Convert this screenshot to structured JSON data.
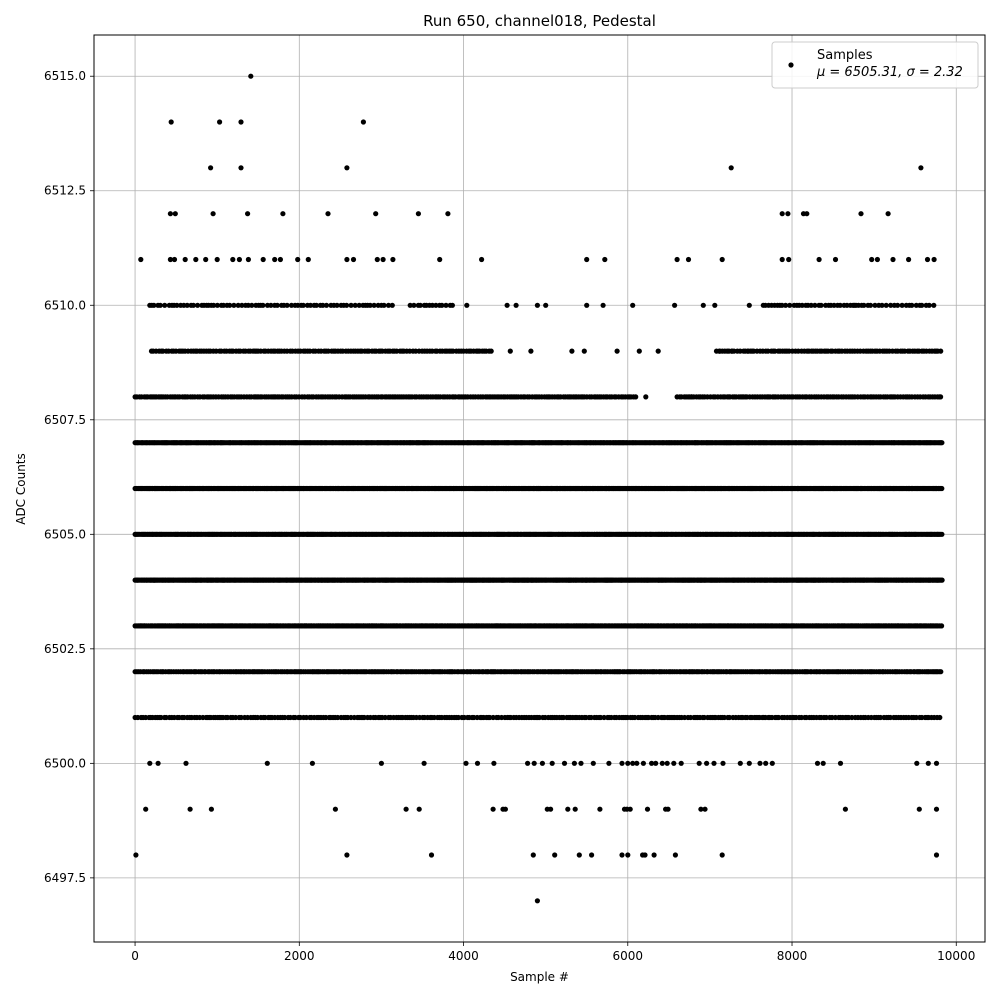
{
  "chart_data": {
    "type": "scatter",
    "title": "Run 650, channel018, Pedestal",
    "xlabel": "Sample #",
    "ylabel": "ADC Counts",
    "xlim": [
      -500,
      10350
    ],
    "ylim": [
      6496.1,
      6515.9
    ],
    "xticks": [
      0,
      2000,
      4000,
      6000,
      8000,
      10000
    ],
    "xtick_labels": [
      "0",
      "2000",
      "4000",
      "6000",
      "8000",
      "10000"
    ],
    "yticks": [
      6497.5,
      6500.0,
      6502.5,
      6505.0,
      6507.5,
      6510.0,
      6512.5,
      6515.0
    ],
    "ytick_labels": [
      "6497.5",
      "6500.0",
      "6502.5",
      "6505.0",
      "6507.5",
      "6510.0",
      "6512.5",
      "6515.0"
    ],
    "grid": true,
    "legend_position": "top-right",
    "legend": {
      "label": "Samples",
      "stats_text": "μ = 6505.31, σ = 2.32"
    },
    "marker_color": "#000000",
    "series": [
      {
        "name": "Samples",
        "points": [
          [
            1410,
            6515
          ],
          [
            440,
            6514
          ],
          [
            1030,
            6514
          ],
          [
            1290,
            6514
          ],
          [
            2780,
            6514
          ],
          [
            920,
            6513
          ],
          [
            1290,
            6513
          ],
          [
            2580,
            6513
          ],
          [
            7260,
            6513
          ],
          [
            9570,
            6513
          ],
          [
            430,
            6512
          ],
          [
            490,
            6512
          ],
          [
            950,
            6512
          ],
          [
            1370,
            6512
          ],
          [
            1800,
            6512
          ],
          [
            2350,
            6512
          ],
          [
            2930,
            6512
          ],
          [
            3450,
            6512
          ],
          [
            3810,
            6512
          ],
          [
            7880,
            6512
          ],
          [
            7950,
            6512
          ],
          [
            8140,
            6512
          ],
          [
            8180,
            6512
          ],
          [
            8840,
            6512
          ],
          [
            9170,
            6512
          ],
          [
            70,
            6511
          ],
          [
            430,
            6511
          ],
          [
            480,
            6511
          ],
          [
            610,
            6511
          ],
          [
            740,
            6511
          ],
          [
            860,
            6511
          ],
          [
            1000,
            6511
          ],
          [
            1190,
            6511
          ],
          [
            1270,
            6511
          ],
          [
            1380,
            6511
          ],
          [
            1560,
            6511
          ],
          [
            1700,
            6511
          ],
          [
            1770,
            6511
          ],
          [
            1980,
            6511
          ],
          [
            2110,
            6511
          ],
          [
            2580,
            6511
          ],
          [
            2660,
            6511
          ],
          [
            2950,
            6511
          ],
          [
            3020,
            6511
          ],
          [
            3140,
            6511
          ],
          [
            3710,
            6511
          ],
          [
            4220,
            6511
          ],
          [
            5500,
            6511
          ],
          [
            5720,
            6511
          ],
          [
            6600,
            6511
          ],
          [
            6740,
            6511
          ],
          [
            7150,
            6511
          ],
          [
            7880,
            6511
          ],
          [
            7960,
            6511
          ],
          [
            8330,
            6511
          ],
          [
            8530,
            6511
          ],
          [
            8970,
            6511
          ],
          [
            9040,
            6511
          ],
          [
            9230,
            6511
          ],
          [
            9420,
            6511
          ],
          [
            9650,
            6511
          ],
          [
            9730,
            6511
          ],
          [
            4040,
            6510
          ],
          [
            4530,
            6510
          ],
          [
            4640,
            6510
          ],
          [
            4900,
            6510
          ],
          [
            5000,
            6510
          ],
          [
            5500,
            6510
          ],
          [
            5700,
            6510
          ],
          [
            6060,
            6510
          ],
          [
            6570,
            6510
          ],
          [
            6920,
            6510
          ],
          [
            7060,
            6510
          ],
          [
            7480,
            6510
          ],
          [
            8760,
            6510
          ],
          [
            4570,
            6509
          ],
          [
            4820,
            6509
          ],
          [
            5320,
            6509
          ],
          [
            5470,
            6509
          ],
          [
            5870,
            6509
          ],
          [
            6140,
            6509
          ],
          [
            6370,
            6509
          ],
          [
            7120,
            6509
          ],
          [
            7270,
            6509
          ],
          [
            7460,
            6509
          ],
          [
            6220,
            6508
          ],
          [
            6780,
            6508
          ],
          [
            7230,
            6508
          ],
          [
            180,
            6500
          ],
          [
            280,
            6500
          ],
          [
            620,
            6500
          ],
          [
            1610,
            6500
          ],
          [
            2160,
            6500
          ],
          [
            3000,
            6500
          ],
          [
            3520,
            6500
          ],
          [
            4030,
            6500
          ],
          [
            4170,
            6500
          ],
          [
            4370,
            6500
          ],
          [
            4780,
            6500
          ],
          [
            4860,
            6500
          ],
          [
            4960,
            6500
          ],
          [
            5080,
            6500
          ],
          [
            5230,
            6500
          ],
          [
            5350,
            6500
          ],
          [
            5430,
            6500
          ],
          [
            5580,
            6500
          ],
          [
            5770,
            6500
          ],
          [
            5930,
            6500
          ],
          [
            6000,
            6500
          ],
          [
            6060,
            6500
          ],
          [
            6110,
            6500
          ],
          [
            6190,
            6500
          ],
          [
            6290,
            6500
          ],
          [
            6340,
            6500
          ],
          [
            6420,
            6500
          ],
          [
            6480,
            6500
          ],
          [
            6560,
            6500
          ],
          [
            6650,
            6500
          ],
          [
            6870,
            6500
          ],
          [
            6960,
            6500
          ],
          [
            7050,
            6500
          ],
          [
            7160,
            6500
          ],
          [
            7370,
            6500
          ],
          [
            7480,
            6500
          ],
          [
            7610,
            6500
          ],
          [
            7680,
            6500
          ],
          [
            7760,
            6500
          ],
          [
            8310,
            6500
          ],
          [
            8380,
            6500
          ],
          [
            8590,
            6500
          ],
          [
            9520,
            6500
          ],
          [
            9660,
            6500
          ],
          [
            9760,
            6500
          ],
          [
            130,
            6499
          ],
          [
            670,
            6499
          ],
          [
            930,
            6499
          ],
          [
            2440,
            6499
          ],
          [
            3300,
            6499
          ],
          [
            3460,
            6499
          ],
          [
            4360,
            6499
          ],
          [
            4480,
            6499
          ],
          [
            4510,
            6499
          ],
          [
            5020,
            6499
          ],
          [
            5060,
            6499
          ],
          [
            5270,
            6499
          ],
          [
            5360,
            6499
          ],
          [
            5660,
            6499
          ],
          [
            5960,
            6499
          ],
          [
            5990,
            6499
          ],
          [
            6030,
            6499
          ],
          [
            6240,
            6499
          ],
          [
            6460,
            6499
          ],
          [
            6490,
            6499
          ],
          [
            6890,
            6499
          ],
          [
            6940,
            6499
          ],
          [
            8650,
            6499
          ],
          [
            9550,
            6499
          ],
          [
            9760,
            6499
          ],
          [
            10,
            6498
          ],
          [
            2580,
            6498
          ],
          [
            3610,
            6498
          ],
          [
            4850,
            6498
          ],
          [
            5110,
            6498
          ],
          [
            5410,
            6498
          ],
          [
            5560,
            6498
          ],
          [
            5930,
            6498
          ],
          [
            6000,
            6498
          ],
          [
            6180,
            6498
          ],
          [
            6210,
            6498
          ],
          [
            6320,
            6498
          ],
          [
            6580,
            6498
          ],
          [
            7150,
            6498
          ],
          [
            9760,
            6498
          ],
          [
            4900,
            6497
          ]
        ],
        "dense_ranges": [
          {
            "y": 6510,
            "segments": [
              [
                180,
                3150
              ],
              [
                3350,
                3900
              ],
              [
                7650,
                9750
              ]
            ],
            "spacing": 40
          },
          {
            "y": 6509,
            "segments": [
              [
                200,
                4350
              ],
              [
                7080,
                9830
              ]
            ],
            "spacing": 30
          },
          {
            "y": 6508,
            "segments": [
              [
                0,
                6100
              ],
              [
                6600,
                9830
              ]
            ],
            "spacing": 26
          },
          {
            "y": 6507,
            "segments": [
              [
                0,
                9830
              ]
            ],
            "spacing": 14
          },
          {
            "y": 6506,
            "segments": [
              [
                0,
                9830
              ]
            ],
            "spacing": 14
          },
          {
            "y": 6505,
            "segments": [
              [
                0,
                9830
              ]
            ],
            "spacing": 14
          },
          {
            "y": 6504,
            "segments": [
              [
                0,
                9830
              ]
            ],
            "spacing": 14
          },
          {
            "y": 6503,
            "segments": [
              [
                0,
                9830
              ]
            ],
            "spacing": 16
          },
          {
            "y": 6502,
            "segments": [
              [
                0,
                9830
              ]
            ],
            "spacing": 22
          },
          {
            "y": 6501,
            "segments": [
              [
                0,
                9830
              ]
            ],
            "spacing": 30
          }
        ]
      }
    ]
  }
}
